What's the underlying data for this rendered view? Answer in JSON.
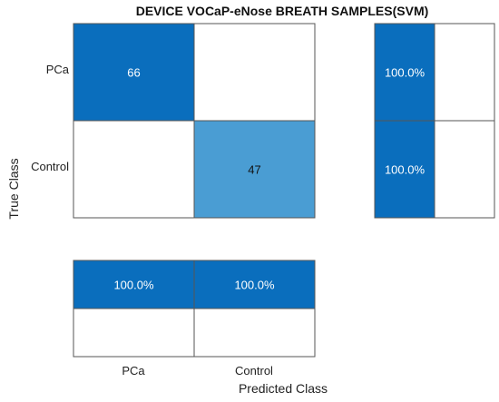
{
  "chart_data": {
    "type": "heatmap",
    "title": "DEVICE VOCaP-eNose BREATH SAMPLES(SVM)",
    "xlabel": "Predicted Class",
    "ylabel": "True Class",
    "classes": [
      "PCa",
      "Control"
    ],
    "matrix": [
      [
        66,
        null
      ],
      [
        null,
        47
      ]
    ],
    "matrix_labels": [
      [
        "66",
        ""
      ],
      [
        "",
        "47"
      ]
    ],
    "row_summary": [
      {
        "class": "PCa",
        "correct": "100.0%",
        "incorrect": ""
      },
      {
        "class": "Control",
        "correct": "100.0%",
        "incorrect": ""
      }
    ],
    "column_summary": [
      {
        "class": "PCa",
        "correct": "100.0%",
        "incorrect": ""
      },
      {
        "class": "Control",
        "correct": "100.0%",
        "incorrect": ""
      }
    ],
    "colors": {
      "dark": "#0A6EBD",
      "light": "#4A9DD3",
      "empty": "#FFFFFF",
      "border": "#555555"
    }
  }
}
